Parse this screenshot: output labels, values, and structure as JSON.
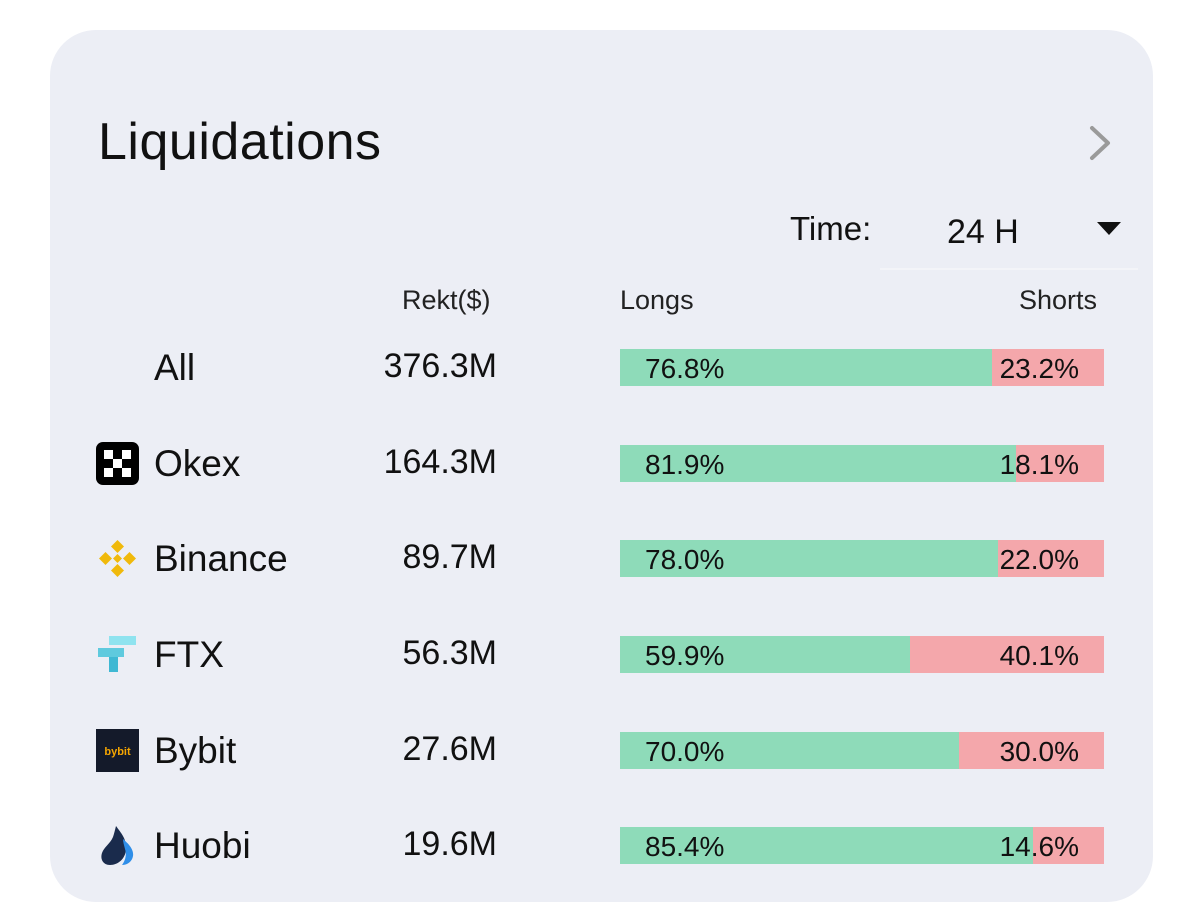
{
  "header": {
    "title": "Liquidations",
    "time_label": "Time:",
    "time_value": "24 H"
  },
  "columns": {
    "rekt": "Rekt($)",
    "longs": "Longs",
    "shorts": "Shorts"
  },
  "rows": [
    {
      "name": "All",
      "logo": "",
      "rekt": "376.3M",
      "long_pct": "76.8%",
      "short_pct": "23.2%",
      "long_value": 76.8
    },
    {
      "name": "Okex",
      "logo": "okex-icon",
      "rekt": "164.3M",
      "long_pct": "81.9%",
      "short_pct": "18.1%",
      "long_value": 81.9
    },
    {
      "name": "Binance",
      "logo": "binance-icon",
      "rekt": "89.7M",
      "long_pct": "78.0%",
      "short_pct": "22.0%",
      "long_value": 78.0
    },
    {
      "name": "FTX",
      "logo": "ftx-icon",
      "rekt": "56.3M",
      "long_pct": "59.9%",
      "short_pct": "40.1%",
      "long_value": 59.9
    },
    {
      "name": "Bybit",
      "logo": "bybit-icon",
      "rekt": "27.6M",
      "long_pct": "70.0%",
      "short_pct": "30.0%",
      "long_value": 70.0
    },
    {
      "name": "Huobi",
      "logo": "huobi-icon",
      "rekt": "19.6M",
      "long_pct": "85.4%",
      "short_pct": "14.6%",
      "long_value": 85.4
    }
  ],
  "logos": {
    "bybit_text": "bybit"
  },
  "colors": {
    "card_bg": "#eceef5",
    "long": "#8edbb9",
    "short": "#f4a7ab",
    "binance": "#f0b90b",
    "ftx": "#5fcade",
    "huobi": "#2f8ee8"
  }
}
